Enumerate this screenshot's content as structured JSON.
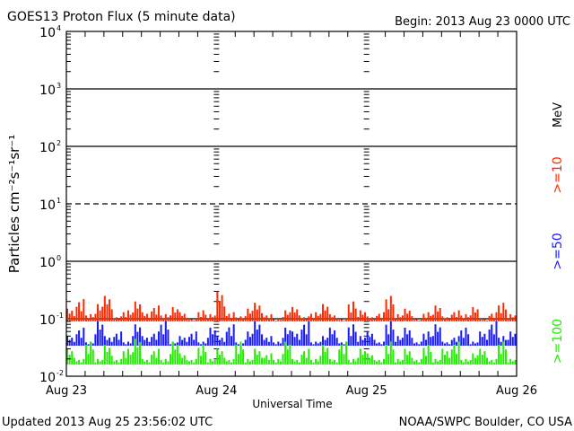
{
  "chart_data": {
    "type": "line",
    "title": "GOES13 Proton Flux (5 minute data)",
    "begin_label": "Begin: 2013 Aug 23 0000 UTC",
    "xlabel": "Universal Time",
    "ylabel": "Particles cm⁻²s⁻¹sr⁻¹",
    "yscale": "log",
    "ylim": [
      0.01,
      10000
    ],
    "y_ticks": [
      {
        "base": "10",
        "exp": "4"
      },
      {
        "base": "10",
        "exp": "3"
      },
      {
        "base": "10",
        "exp": "2"
      },
      {
        "base": "10",
        "exp": "1"
      },
      {
        "base": "10",
        "exp": "0"
      },
      {
        "base": "10",
        "exp": "-1"
      },
      {
        "base": "10",
        "exp": "-2"
      }
    ],
    "x_ticks": [
      "Aug 23",
      "Aug 24",
      "Aug 25",
      "Aug 26"
    ],
    "xlim_days": [
      0,
      3
    ],
    "threshold_lines": [
      {
        "value": 1000,
        "style": "solid"
      },
      {
        "value": 100,
        "style": "solid"
      },
      {
        "value": 10,
        "style": "dashed"
      },
      {
        "value": 1,
        "style": "solid"
      },
      {
        "value": 0.1,
        "style": "solid"
      }
    ],
    "units_label": "MeV",
    "series": [
      {
        "name": ">=10",
        "color": "#ff2a00",
        "floor": 0.09,
        "values": [
          0.15,
          0.22,
          0.12,
          0.18,
          0.25,
          0.11,
          0.14,
          0.2,
          0.13,
          0.17,
          0.12,
          0.16,
          0.13,
          0.1,
          0.14,
          0.12,
          0.3,
          0.13,
          0.11,
          0.15,
          0.19,
          0.12,
          0.1,
          0.14,
          0.16,
          0.11,
          0.13,
          0.18,
          0.12,
          0.1,
          0.2,
          0.14,
          0.11,
          0.13,
          0.25,
          0.12,
          0.15,
          0.1,
          0.13,
          0.17,
          0.11,
          0.14,
          0.12,
          0.16,
          0.1,
          0.13,
          0.19,
          0.12
        ]
      },
      {
        "name": ">=50",
        "color": "#1a1aff",
        "floor": 0.034,
        "values": [
          0.05,
          0.07,
          0.04,
          0.09,
          0.05,
          0.06,
          0.04,
          0.08,
          0.05,
          0.06,
          0.09,
          0.04,
          0.05,
          0.06,
          0.04,
          0.07,
          0.05,
          0.08,
          0.04,
          0.06,
          0.09,
          0.05,
          0.04,
          0.07,
          0.06,
          0.09,
          0.04,
          0.05,
          0.07,
          0.04,
          0.08,
          0.05,
          0.06,
          0.04,
          0.09,
          0.05,
          0.07,
          0.04,
          0.06,
          0.08,
          0.04,
          0.05,
          0.07,
          0.04,
          0.06,
          0.09,
          0.05,
          0.06
        ]
      },
      {
        "name": ">=100",
        "color": "#22ee00",
        "floor": 0.016,
        "values": [
          0.03,
          0.02,
          0.04,
          0.02,
          0.035,
          0.02,
          0.03,
          0.045,
          0.02,
          0.03,
          0.02,
          0.04,
          0.025,
          0.02,
          0.035,
          0.02,
          0.03,
          0.02,
          0.04,
          0.02,
          0.03,
          0.025,
          0.02,
          0.04,
          0.02,
          0.03,
          0.02,
          0.035,
          0.02,
          0.04,
          0.02,
          0.03,
          0.025,
          0.02,
          0.04,
          0.02,
          0.03,
          0.02,
          0.035,
          0.02,
          0.03,
          0.04,
          0.02,
          0.025,
          0.03,
          0.02,
          0.04,
          0.02
        ]
      }
    ]
  },
  "footer": {
    "updated": "Updated 2013 Aug 25 23:56:02 UTC",
    "source": "NOAA/SWPC Boulder, CO USA"
  }
}
